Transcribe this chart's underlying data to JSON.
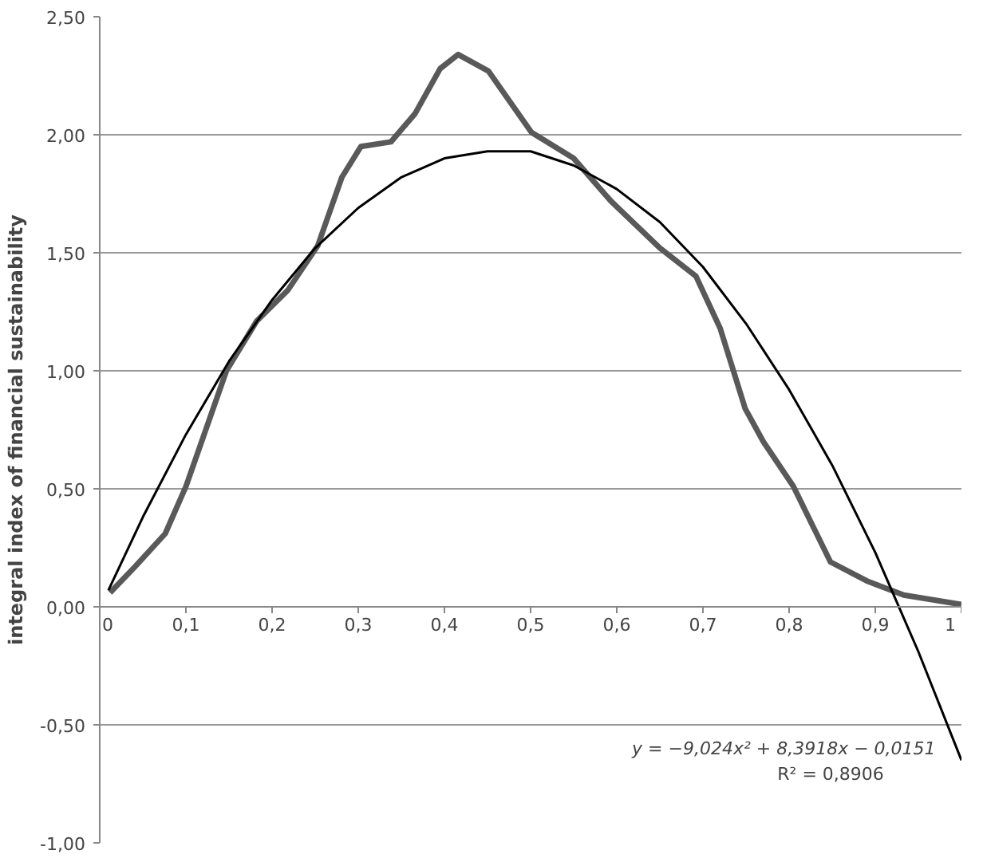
{
  "chart_data": {
    "type": "line",
    "ylabel": "integral index of financial sustainability",
    "xlim": [
      0,
      1
    ],
    "ylim": [
      -1,
      2.5
    ],
    "xticks": [
      {
        "value": 0,
        "label": "0"
      },
      {
        "value": 0.1,
        "label": "0,1"
      },
      {
        "value": 0.2,
        "label": "0,2"
      },
      {
        "value": 0.3,
        "label": "0,3"
      },
      {
        "value": 0.4,
        "label": "0,4"
      },
      {
        "value": 0.5,
        "label": "0,5"
      },
      {
        "value": 0.6,
        "label": "0,6"
      },
      {
        "value": 0.7,
        "label": "0,7"
      },
      {
        "value": 0.8,
        "label": "0,8"
      },
      {
        "value": 0.9,
        "label": "0,9"
      },
      {
        "value": 1,
        "label": "1"
      }
    ],
    "yticks": [
      {
        "value": -1,
        "label": "-1,00"
      },
      {
        "value": -0.5,
        "label": "-0,50"
      },
      {
        "value": 0,
        "label": "0,00"
      },
      {
        "value": 0.5,
        "label": "0,50"
      },
      {
        "value": 1,
        "label": "1,00"
      },
      {
        "value": 1.5,
        "label": "1,50"
      },
      {
        "value": 2,
        "label": "2,00"
      },
      {
        "value": 2.5,
        "label": "2,50"
      }
    ],
    "grid": "y",
    "marker": "none",
    "line_style": "solid",
    "series": [
      {
        "color": "#595959",
        "x": [
          0.012,
          0.041,
          0.076,
          0.1,
          0.147,
          0.182,
          0.218,
          0.253,
          0.281,
          0.303,
          0.338,
          0.366,
          0.395,
          0.416,
          0.451,
          0.501,
          0.55,
          0.593,
          0.65,
          0.692,
          0.72,
          0.749,
          0.77,
          0.805,
          0.848,
          0.89,
          0.933,
          1.0
        ],
        "values": [
          0.06,
          0.17,
          0.31,
          0.51,
          1.0,
          1.21,
          1.34,
          1.53,
          1.82,
          1.95,
          1.97,
          2.09,
          2.28,
          2.34,
          2.27,
          2.01,
          1.9,
          1.72,
          1.52,
          1.4,
          1.18,
          0.84,
          0.7,
          0.51,
          0.19,
          0.11,
          0.05,
          0.01
        ]
      },
      {
        "type": "line",
        "color": "#000000",
        "x": [
          0.01,
          0.05,
          0.1,
          0.15,
          0.2,
          0.25,
          0.3,
          0.35,
          0.4,
          0.45,
          0.5,
          0.55,
          0.6,
          0.65,
          0.7,
          0.75,
          0.8,
          0.85,
          0.9,
          0.95,
          1.0
        ],
        "values": [
          0.07,
          0.38,
          0.73,
          1.04,
          1.3,
          1.52,
          1.69,
          1.82,
          1.9,
          1.93,
          1.93,
          1.87,
          1.77,
          1.63,
          1.44,
          1.2,
          0.92,
          0.6,
          0.23,
          -0.19,
          -0.65
        ]
      }
    ],
    "annotations": [
      "y = −9,024x² + 8,3918x − 0,0151",
      "R² = 0,8906"
    ]
  }
}
